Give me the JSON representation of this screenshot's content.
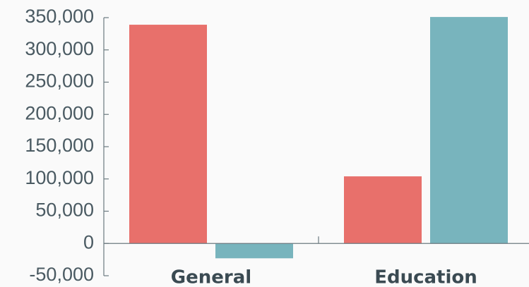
{
  "chart_data": {
    "type": "bar",
    "categories": [
      "General",
      "Education"
    ],
    "series": [
      {
        "color": "#e8706b",
        "values": [
          339000,
          104000
        ]
      },
      {
        "color": "#78b4bd",
        "values": [
          -23000,
          351000
        ]
      }
    ],
    "ylim": [
      -50000,
      350000
    ],
    "yticks": [
      {
        "value": -50000,
        "label": "-50,000"
      },
      0,
      {
        "value": 50000,
        "label": "50,000"
      },
      {
        "value": 100000,
        "label": "100,000"
      },
      {
        "value": 150000,
        "label": "150,000"
      },
      {
        "value": 200000,
        "label": "200,000"
      },
      {
        "value": 250000,
        "label": "250,000"
      },
      {
        "value": 300000,
        "label": "300,000"
      },
      {
        "value": 350000,
        "label": "350,000"
      }
    ],
    "grid": false
  }
}
